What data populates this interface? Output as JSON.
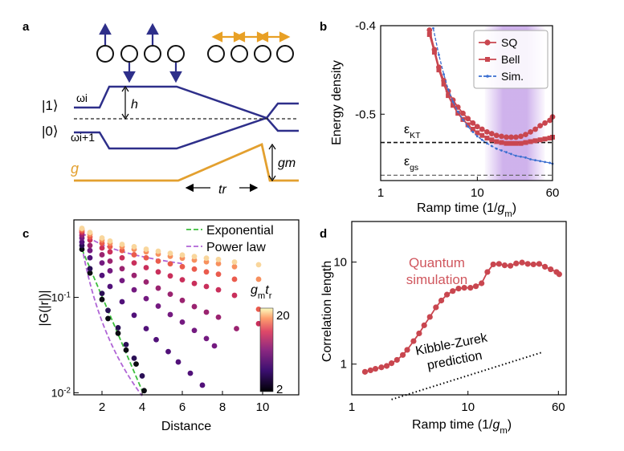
{
  "panels": {
    "a": {
      "label": "a",
      "state1": "|1⟩",
      "state0": "|0⟩",
      "omega_i": "ωi",
      "omega_i1": "ωi+1",
      "h": "h",
      "g": "g",
      "gm": "gm",
      "tr": "tr",
      "colors": {
        "levels": "#2e2f8a",
        "coupling": "#e3a02f",
        "spin_left": "#2e2f8a",
        "spin_right": "#e8a025"
      }
    },
    "b": {
      "label": "b"
    },
    "c": {
      "label": "c"
    },
    "d": {
      "label": "d"
    }
  },
  "chart_data": [
    {
      "panel": "b",
      "type": "line",
      "xlabel": "Ramp time (1/gm)",
      "ylabel": "Energy density",
      "xscale": "log",
      "xlim": [
        1,
        60
      ],
      "ylim": [
        -0.575,
        -0.4
      ],
      "xticks": [
        "1",
        "10",
        "60"
      ],
      "yticks": [
        "-0.4",
        "-0.5"
      ],
      "annotations": [
        "εKT",
        "εgs"
      ],
      "hlines": [
        {
          "name": "εKT",
          "y": -0.532
        },
        {
          "name": "εgs",
          "y": -0.569
        }
      ],
      "shaded_region": [
        12,
        50
      ],
      "legend": "top-right",
      "series": [
        {
          "name": "SQ",
          "color": "#c9464f",
          "x": [
            3.2,
            3.6,
            4,
            4.5,
            5,
            5.6,
            6.3,
            7.1,
            8,
            9,
            10,
            11.2,
            12.6,
            14.1,
            15.8,
            17.8,
            20,
            22.4,
            25.1,
            28.2,
            31.6,
            35.5,
            39.8,
            44.7,
            50.1,
            56.2,
            60
          ],
          "y": [
            -0.405,
            -0.427,
            -0.447,
            -0.462,
            -0.474,
            -0.484,
            -0.492,
            -0.499,
            -0.505,
            -0.51,
            -0.514,
            -0.517,
            -0.52,
            -0.522,
            -0.524,
            -0.525,
            -0.526,
            -0.526,
            -0.526,
            -0.525,
            -0.523,
            -0.52,
            -0.517,
            -0.513,
            -0.51,
            -0.507,
            -0.503
          ]
        },
        {
          "name": "Bell",
          "color": "#c9464f",
          "x": [
            3.2,
            3.6,
            4,
            4.5,
            5,
            5.6,
            6.3,
            7.1,
            8,
            9,
            10,
            11.2,
            12.6,
            14.1,
            15.8,
            17.8,
            20,
            22.4,
            25.1,
            28.2,
            31.6,
            35.5,
            39.8,
            44.7,
            50.1,
            56.2,
            60
          ],
          "y": [
            -0.41,
            -0.43,
            -0.45,
            -0.466,
            -0.479,
            -0.49,
            -0.499,
            -0.506,
            -0.512,
            -0.517,
            -0.521,
            -0.524,
            -0.527,
            -0.529,
            -0.531,
            -0.532,
            -0.533,
            -0.533,
            -0.533,
            -0.533,
            -0.532,
            -0.531,
            -0.53,
            -0.529,
            -0.528,
            -0.527,
            -0.526
          ]
        },
        {
          "name": "Sim.",
          "color": "#3b6fd0",
          "x": [
            3.5,
            4,
            4.5,
            5,
            5.6,
            6.3,
            7.1,
            8,
            9,
            10,
            11.2,
            12.6,
            14.1,
            15.8,
            17.8,
            20,
            22.4,
            25.1,
            28.2,
            31.6,
            35.5,
            39.8,
            44.7,
            50.1,
            56.2,
            60
          ],
          "y": [
            -0.403,
            -0.433,
            -0.455,
            -0.472,
            -0.486,
            -0.497,
            -0.506,
            -0.514,
            -0.52,
            -0.525,
            -0.529,
            -0.533,
            -0.536,
            -0.539,
            -0.541,
            -0.543,
            -0.545,
            -0.547,
            -0.548,
            -0.549,
            -0.551,
            -0.552,
            -0.553,
            -0.554,
            -0.555,
            -0.556
          ]
        }
      ]
    },
    {
      "panel": "c",
      "type": "scatter",
      "xlabel": "Distance",
      "ylabel": "|G(|r|)|",
      "yscale": "log",
      "xlim": [
        0.6,
        11.8
      ],
      "ylim": [
        0.0095,
        0.65
      ],
      "xticks": [
        "2",
        "4",
        "6",
        "8",
        "10"
      ],
      "yticks": [
        "10-1",
        "10-2"
      ],
      "legend": "top-right",
      "legend_entries": [
        "Exponential",
        "Power law"
      ],
      "colorbar": {
        "label": "gmtr",
        "ticks": [
          "2",
          "20"
        ]
      },
      "fit_colors": {
        "Exponential": "#3dbf3d",
        "Power law": "#b065d6"
      },
      "series": [
        {
          "param": 2,
          "color": "#0b0b12",
          "x": [
            1,
            1.4,
            2,
            2.3,
            2.8,
            3.2,
            3.7,
            4.1
          ],
          "y": [
            0.32,
            0.18,
            0.095,
            0.06,
            0.042,
            0.028,
            0.02,
            0.0105
          ]
        },
        {
          "param": 3,
          "color": "#2a0f55",
          "x": [
            1,
            1.4,
            2,
            2.3,
            2.8,
            3.2,
            3.6,
            4
          ],
          "y": [
            0.35,
            0.2,
            0.11,
            0.073,
            0.048,
            0.032,
            0.023,
            0.015
          ]
        },
        {
          "param": 4,
          "color": "#511179",
          "x": [
            1,
            1.4,
            2,
            2.4,
            3,
            3.6,
            4.2,
            4.7,
            5.3,
            5.8,
            6.4,
            7
          ],
          "y": [
            0.38,
            0.26,
            0.17,
            0.13,
            0.09,
            0.065,
            0.047,
            0.036,
            0.027,
            0.021,
            0.016,
            0.012
          ]
        },
        {
          "param": 6,
          "color": "#741a80",
          "x": [
            1,
            1.4,
            2,
            2.4,
            3,
            3.6,
            4.2,
            4.8,
            5.4,
            6,
            6.6,
            7.2,
            7.6
          ],
          "y": [
            0.42,
            0.31,
            0.23,
            0.19,
            0.15,
            0.12,
            0.097,
            0.081,
            0.066,
            0.055,
            0.045,
            0.037,
            0.031
          ]
        },
        {
          "param": 8,
          "color": "#9a2370",
          "x": [
            1,
            1.4,
            2,
            2.4,
            3,
            3.6,
            4.2,
            4.8,
            5.4,
            6,
            6.6,
            7.2,
            7.8,
            8.7
          ],
          "y": [
            0.45,
            0.35,
            0.28,
            0.24,
            0.2,
            0.17,
            0.145,
            0.125,
            0.108,
            0.093,
            0.08,
            0.07,
            0.062,
            0.047
          ]
        },
        {
          "param": 11,
          "color": "#c92f5b",
          "x": [
            1,
            1.4,
            2,
            2.4,
            3,
            3.6,
            4.2,
            4.8,
            5.4,
            6,
            6.6,
            7.2,
            7.8,
            8.6,
            9.8
          ],
          "y": [
            0.48,
            0.4,
            0.33,
            0.3,
            0.26,
            0.23,
            0.205,
            0.185,
            0.168,
            0.153,
            0.14,
            0.13,
            0.12,
            0.105,
            0.053
          ]
        },
        {
          "param": 14,
          "color": "#ea5b4d",
          "x": [
            1,
            1.4,
            2,
            2.4,
            3,
            3.6,
            4.2,
            4.8,
            5.4,
            6,
            6.6,
            7.2,
            7.8,
            8.6,
            9.8
          ],
          "y": [
            0.5,
            0.43,
            0.37,
            0.34,
            0.31,
            0.28,
            0.26,
            0.24,
            0.225,
            0.21,
            0.198,
            0.185,
            0.175,
            0.155,
            0.075
          ]
        },
        {
          "param": 18,
          "color": "#f7905e",
          "x": [
            1,
            1.4,
            2,
            2.4,
            3,
            3.6,
            4.2,
            4.8,
            5.4,
            6,
            6.6,
            7.2,
            7.8,
            8.6,
            9.8
          ],
          "y": [
            0.52,
            0.46,
            0.4,
            0.37,
            0.34,
            0.32,
            0.3,
            0.285,
            0.27,
            0.258,
            0.246,
            0.236,
            0.226,
            0.21,
            0.155
          ]
        },
        {
          "param": 22,
          "color": "#f9d69c",
          "x": [
            1,
            1.4,
            2,
            2.4,
            3,
            3.6,
            4.2,
            4.8,
            5.4,
            6,
            6.6,
            7.2,
            7.8,
            8.6,
            9.8
          ],
          "y": [
            0.53,
            0.48,
            0.42,
            0.39,
            0.36,
            0.34,
            0.32,
            0.305,
            0.29,
            0.278,
            0.268,
            0.258,
            0.25,
            0.235,
            0.22
          ]
        }
      ]
    },
    {
      "panel": "d",
      "type": "line",
      "xlabel": "Ramp time (1/gm)",
      "ylabel": "Correlation length",
      "xscale": "log",
      "yscale": "log",
      "xlim": [
        1,
        70
      ],
      "ylim": [
        0.5,
        25
      ],
      "xticks": [
        "1",
        "10",
        "60"
      ],
      "yticks": [
        "1",
        "10"
      ],
      "annotations": [
        "Quantum simulation",
        "Kibble-Zurek prediction"
      ],
      "series": [
        {
          "name": "Quantum simulation",
          "color": "#c9464f",
          "x": [
            1.3,
            1.45,
            1.6,
            1.8,
            2,
            2.2,
            2.45,
            2.75,
            3,
            3.4,
            3.8,
            4.2,
            4.7,
            5.3,
            5.9,
            6.6,
            7.4,
            8.3,
            9.3,
            10.5,
            11.7,
            13.1,
            14.7,
            16.5,
            18.5,
            20.7,
            23.2,
            26,
            29.2,
            32.7,
            36.6,
            41,
            46,
            51.5,
            57.8,
            61
          ],
          "y": [
            0.84,
            0.87,
            0.9,
            0.93,
            0.96,
            1.02,
            1.1,
            1.23,
            1.38,
            1.68,
            2.0,
            2.4,
            2.9,
            3.6,
            4.2,
            4.8,
            5.2,
            5.5,
            5.6,
            5.6,
            5.8,
            6.2,
            8.0,
            9.5,
            9.6,
            9.3,
            9.2,
            9.7,
            9.9,
            9.6,
            9.5,
            9.6,
            9.0,
            8.5,
            8.0,
            7.6
          ]
        },
        {
          "name": "Kibble-Zurek prediction",
          "color": "#000000",
          "x": [
            2.2,
            43
          ],
          "y": [
            0.45,
            1.3
          ]
        }
      ]
    }
  ]
}
